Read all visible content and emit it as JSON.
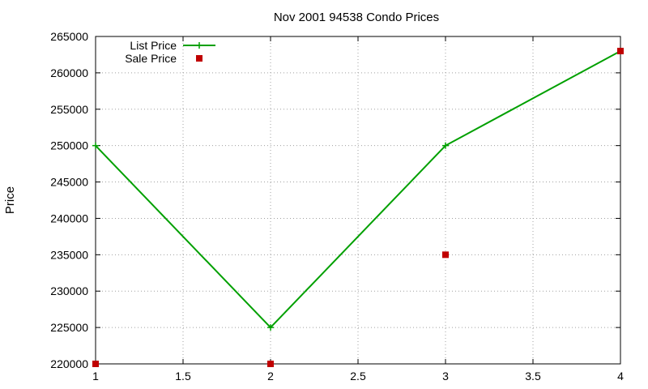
{
  "chart_data": {
    "type": "line",
    "title": "Nov 2001 94538 Condo Prices",
    "xlabel": "",
    "ylabel": "Price",
    "xlim": [
      1,
      4
    ],
    "ylim": [
      220000,
      265000
    ],
    "xticks": [
      "1",
      "1.5",
      "2",
      "2.5",
      "3",
      "3.5",
      "4"
    ],
    "yticks": [
      "220000",
      "225000",
      "230000",
      "235000",
      "240000",
      "245000",
      "250000",
      "255000",
      "260000",
      "265000"
    ],
    "grid": true,
    "legend_position": "top-left",
    "series": [
      {
        "name": "List Price",
        "style": "linespoints",
        "color": "#00a000",
        "x": [
          1,
          2,
          3,
          4
        ],
        "y": [
          250000,
          225000,
          250000,
          263000
        ]
      },
      {
        "name": "Sale Price",
        "style": "points",
        "color": "#c00000",
        "x": [
          1,
          2,
          3,
          4
        ],
        "y": [
          220000,
          220000,
          235000,
          263000
        ]
      }
    ]
  }
}
